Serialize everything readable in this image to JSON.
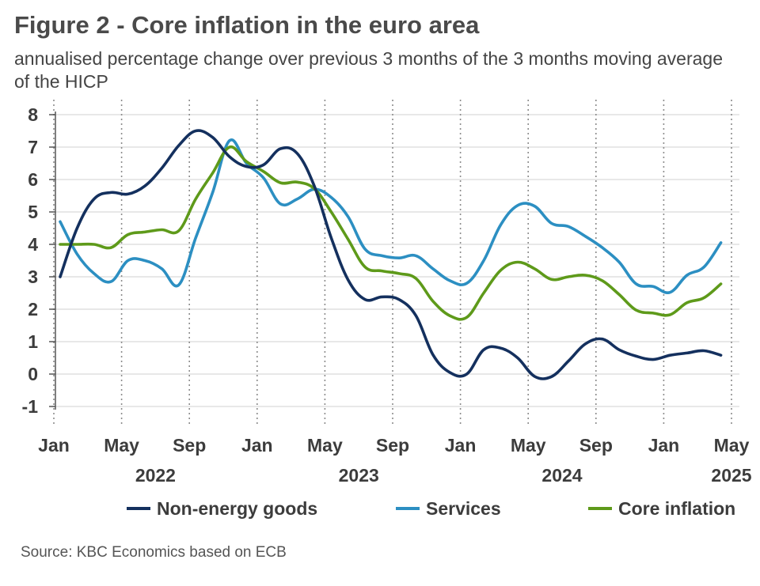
{
  "header": {
    "title": "Figure 2 - Core inflation in the euro area",
    "subtitle": "annualised percentage change over previous 3 months of the 3 months moving average of the HICP"
  },
  "footer": {
    "source": "Source: KBC Economics based on ECB"
  },
  "chart_data": {
    "type": "line",
    "x_start": "2022-01",
    "x_end": "2025-05",
    "ylim": [
      -1,
      8
    ],
    "yticks": [
      -1,
      0,
      1,
      2,
      3,
      4,
      5,
      6,
      7,
      8
    ],
    "x_tick_labels": [
      {
        "month": 0,
        "label": "Jan"
      },
      {
        "month": 4,
        "label": "May"
      },
      {
        "month": 8,
        "label": "Sep"
      },
      {
        "month": 12,
        "label": "Jan"
      },
      {
        "month": 16,
        "label": "May"
      },
      {
        "month": 20,
        "label": "Sep"
      },
      {
        "month": 24,
        "label": "Jan"
      },
      {
        "month": 28,
        "label": "May"
      },
      {
        "month": 32,
        "label": "Sep"
      },
      {
        "month": 36,
        "label": "Jan"
      },
      {
        "month": 40,
        "label": "May"
      }
    ],
    "year_labels": [
      {
        "month": 6,
        "label": "2022"
      },
      {
        "month": 18,
        "label": "2023"
      },
      {
        "month": 30,
        "label": "2024"
      },
      {
        "month": 40,
        "label": "2025"
      }
    ],
    "vertical_grid_months": [
      0,
      4,
      8,
      12,
      16,
      20,
      24,
      28,
      32,
      36,
      40
    ],
    "grid": true,
    "legend_position": "bottom",
    "series": [
      {
        "name": "Non-energy goods",
        "color": "#14305e",
        "values": [
          3.0,
          4.5,
          5.4,
          5.6,
          5.55,
          5.8,
          6.35,
          7.05,
          7.5,
          7.3,
          6.7,
          6.4,
          6.45,
          6.95,
          6.8,
          5.8,
          4.2,
          2.9,
          2.3,
          2.38,
          2.3,
          1.8,
          0.6,
          0.05,
          0.0,
          0.75,
          0.8,
          0.5,
          -0.07,
          -0.08,
          0.4,
          0.93,
          1.08,
          0.75,
          0.55,
          0.45,
          0.58,
          0.65,
          0.72,
          0.58
        ]
      },
      {
        "name": "Services",
        "color": "#2c8fc2",
        "values": [
          4.7,
          3.7,
          3.1,
          2.85,
          3.5,
          3.5,
          3.25,
          2.75,
          4.2,
          5.6,
          7.2,
          6.5,
          6.05,
          5.25,
          5.4,
          5.7,
          5.45,
          4.85,
          3.85,
          3.65,
          3.58,
          3.65,
          3.25,
          2.88,
          2.8,
          3.5,
          4.6,
          5.2,
          5.18,
          4.65,
          4.55,
          4.25,
          3.9,
          3.45,
          2.78,
          2.7,
          2.52,
          3.05,
          3.3,
          4.05
        ]
      },
      {
        "name": "Core inflation",
        "color": "#5e9a1a",
        "values": [
          4.0,
          4.0,
          4.0,
          3.9,
          4.3,
          4.38,
          4.45,
          4.42,
          5.4,
          6.2,
          7.0,
          6.55,
          6.25,
          5.9,
          5.92,
          5.72,
          5.0,
          4.15,
          3.3,
          3.18,
          3.1,
          2.95,
          2.25,
          1.8,
          1.75,
          2.5,
          3.2,
          3.45,
          3.25,
          2.92,
          3.0,
          3.05,
          2.88,
          2.45,
          1.97,
          1.88,
          1.83,
          2.2,
          2.35,
          2.78
        ]
      }
    ]
  }
}
